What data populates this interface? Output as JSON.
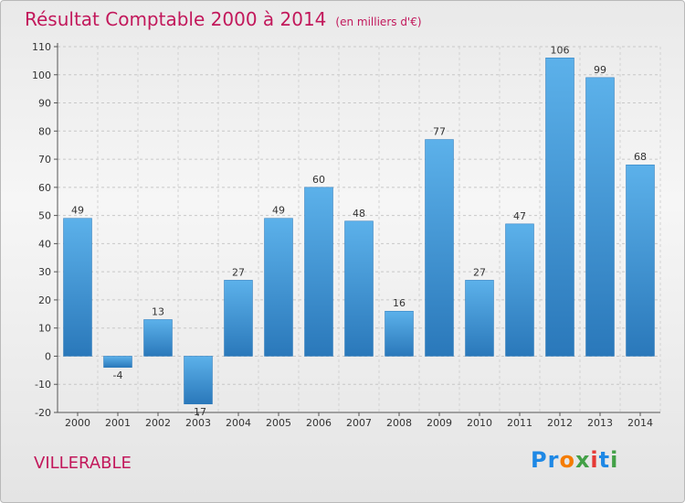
{
  "header": {
    "title": "Résultat Comptable 2000 à 2014",
    "subtitle": "(en milliers d'€)"
  },
  "footer": {
    "commune": "VILLERABLE",
    "logo": {
      "letters": [
        "P",
        "r",
        "o",
        "x",
        "i",
        "t",
        "i"
      ],
      "colors": [
        "#1e88e5",
        "#1e88e5",
        "#f57c00",
        "#43a047",
        "#e53935",
        "#1e88e5",
        "#43a047"
      ]
    }
  },
  "chart_data": {
    "type": "bar",
    "title": "Résultat Comptable 2000 à 2014",
    "subtitle": "(en milliers d'€)",
    "categories": [
      "2000",
      "2001",
      "2002",
      "2003",
      "2004",
      "2005",
      "2006",
      "2007",
      "2008",
      "2009",
      "2010",
      "2011",
      "2012",
      "2013",
      "2014"
    ],
    "values": [
      49,
      -4,
      13,
      -17,
      27,
      49,
      60,
      48,
      16,
      77,
      27,
      47,
      106,
      99,
      68
    ],
    "labels": [
      "49",
      "-4",
      "13",
      "-17",
      "27",
      "49",
      "60",
      "48",
      "16",
      "77",
      "27",
      "47",
      "106",
      "99",
      "68"
    ],
    "ylim": [
      -20,
      110
    ],
    "yticks": [
      -20,
      -10,
      0,
      10,
      20,
      30,
      40,
      50,
      60,
      70,
      80,
      90,
      100,
      110
    ],
    "xlabel": "",
    "ylabel": "",
    "grid": true,
    "bar_color": "#4fa3e0",
    "bar_color_dark": "#2c7bbf"
  }
}
